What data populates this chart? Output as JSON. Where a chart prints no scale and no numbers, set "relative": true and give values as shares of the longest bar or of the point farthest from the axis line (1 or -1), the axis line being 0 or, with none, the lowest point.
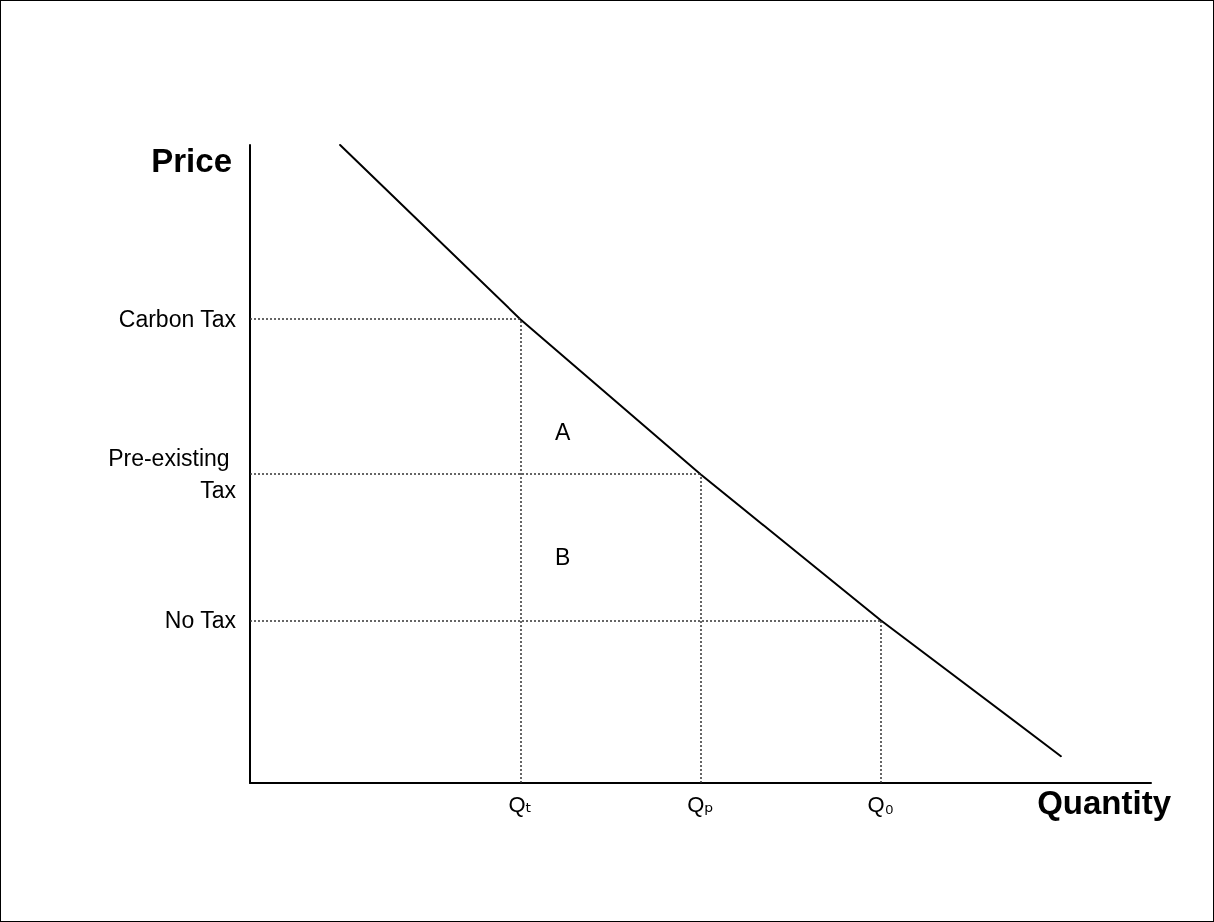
{
  "chart_data": {
    "type": "line",
    "relative": true,
    "xlabel": "Quantity",
    "ylabel": "Price",
    "categories": [
      null,
      "Qₜ",
      "Qₚ",
      "Q₀",
      null
    ],
    "values": [
      1,
      0.727,
      0.484,
      0.255,
      0.042
    ],
    "color": "#000000",
    "line_style": "solid",
    "marker": "none",
    "ref_lines": [
      {
        "axis": "y",
        "value": 0.727,
        "label": "Carbon Tax",
        "color": "#333333",
        "line_style": "dotted"
      },
      {
        "axis": "y",
        "value": 0.484,
        "label": "Pre-existing Tax",
        "color": "#333333",
        "line_style": "dotted"
      },
      {
        "axis": "y",
        "value": 0.255,
        "label": "No Tax",
        "color": "#333333",
        "line_style": "dotted"
      },
      {
        "axis": "x",
        "value": "Qₜ",
        "color": "#333333",
        "line_style": "dotted"
      },
      {
        "axis": "x",
        "value": "Qₚ",
        "color": "#333333",
        "line_style": "dotted"
      },
      {
        "axis": "x",
        "value": "Q₀",
        "color": "#333333",
        "line_style": "dotted"
      }
    ],
    "annotations": [
      "A",
      "B"
    ]
  }
}
